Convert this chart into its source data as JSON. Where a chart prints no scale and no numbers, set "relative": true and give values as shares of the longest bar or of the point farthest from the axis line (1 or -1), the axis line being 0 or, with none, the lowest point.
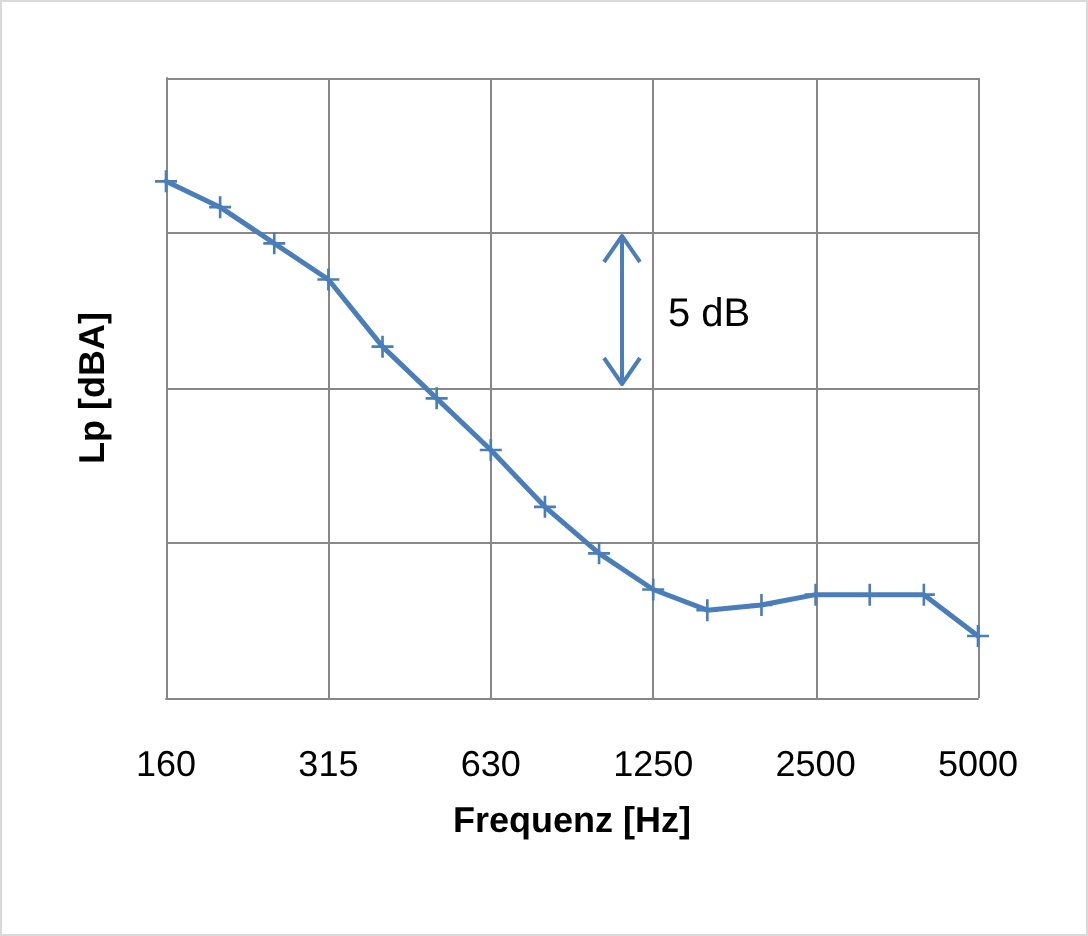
{
  "chart_data": {
    "type": "line",
    "relative": true,
    "xlabel": "Frequenz [Hz]",
    "ylabel": "Lp [dBA]",
    "categories": [
      "160",
      null,
      null,
      "315",
      null,
      null,
      "630",
      null,
      null,
      "1250",
      null,
      null,
      "2500",
      null,
      null,
      "5000"
    ],
    "series": [
      {
        "color": "#4a7ebb",
        "values": [
          1.0,
          0.95,
          0.88,
          0.81,
          0.68,
          0.58,
          0.48,
          0.37,
          0.28,
          0.21,
          0.17,
          0.18,
          0.2,
          0.2,
          0.2,
          0.12
        ]
      }
    ],
    "annotations": [
      "5 dB"
    ],
    "grid": true,
    "marker": "cross",
    "line_style": "solid"
  }
}
